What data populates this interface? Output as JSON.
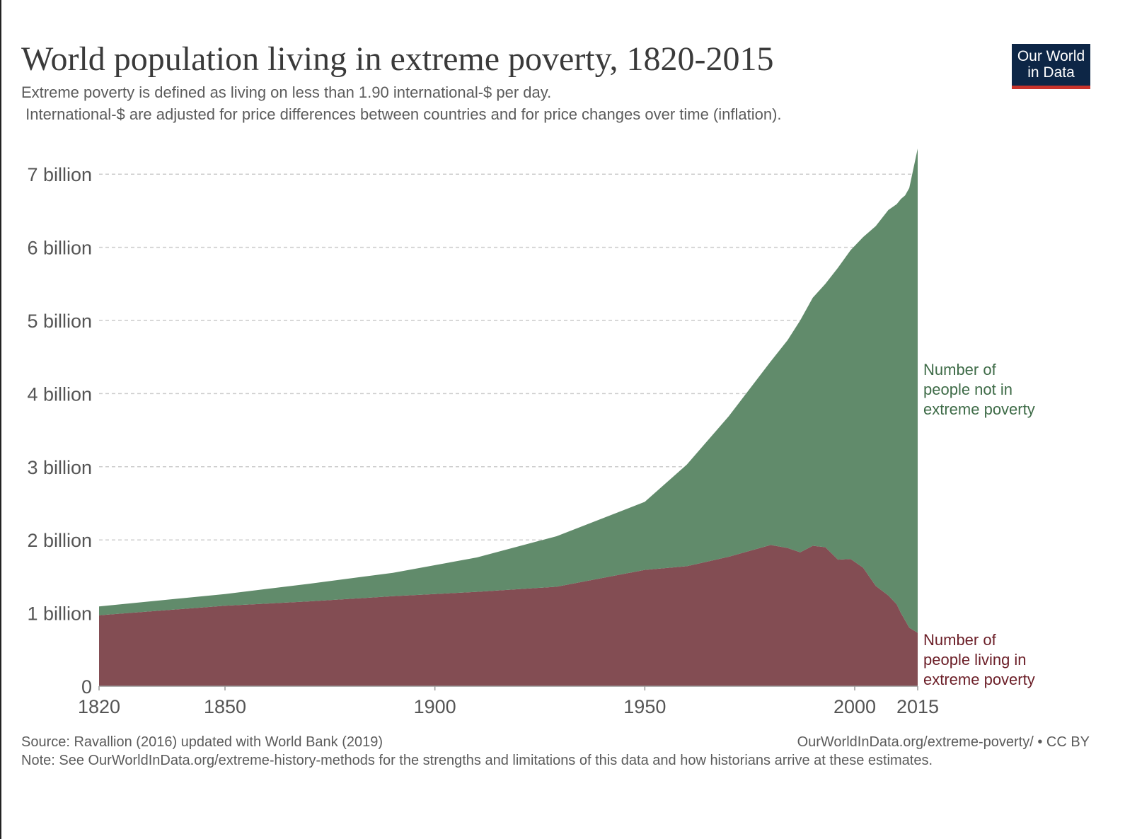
{
  "header": {
    "title": "World population living in extreme poverty, 1820-2015",
    "subtitle_line1": "Extreme poverty is defined as living on less than 1.90 international-$ per day.",
    "subtitle_line2": " International-$ are adjusted for price differences between countries and for price changes over time (inflation).",
    "logo_line1": "Our World",
    "logo_line2": "in Data"
  },
  "footer": {
    "source": "Source: Ravallion (2016) updated with World Bank (2019)",
    "url": "OurWorldInData.org/extreme-poverty/ • CC BY",
    "note": "Note: See OurWorldInData.org/extreme-history-methods for the strengths and limitations of this data and how historians arrive at these estimates."
  },
  "colors": {
    "poverty": "#834d53",
    "not_poverty": "#618b6b",
    "poverty_label": "#6b1e27",
    "not_poverty_label": "#3e6b47",
    "grid": "#cccccc",
    "logo_bg": "#0d2646",
    "logo_accent": "#c8332b"
  },
  "chart_data": {
    "type": "area",
    "stacked": true,
    "title": "World population living in extreme poverty, 1820-2015",
    "xlim": [
      1820,
      2015
    ],
    "ylim": [
      0,
      7.35
    ],
    "y_unit": "billion",
    "x_ticks": [
      1820,
      1850,
      1900,
      1950,
      2000,
      2015
    ],
    "y_ticks": [
      {
        "value": 0,
        "label": "0"
      },
      {
        "value": 1,
        "label": "1 billion"
      },
      {
        "value": 2,
        "label": "2 billion"
      },
      {
        "value": 3,
        "label": "3 billion"
      },
      {
        "value": 4,
        "label": "4 billion"
      },
      {
        "value": 5,
        "label": "5 billion"
      },
      {
        "value": 6,
        "label": "6 billion"
      },
      {
        "value": 7,
        "label": "7 billion"
      }
    ],
    "grid": "horizontal dashed",
    "legend": "inline right",
    "series": [
      {
        "name": "Number of people living in extreme poverty",
        "label_lines": [
          "Number of",
          "people living in",
          "extreme poverty"
        ],
        "points": [
          [
            1820,
            0.97
          ],
          [
            1850,
            1.1
          ],
          [
            1870,
            1.16
          ],
          [
            1890,
            1.23
          ],
          [
            1910,
            1.29
          ],
          [
            1929,
            1.36
          ],
          [
            1950,
            1.59
          ],
          [
            1960,
            1.64
          ],
          [
            1970,
            1.77
          ],
          [
            1980,
            1.93
          ],
          [
            1984,
            1.89
          ],
          [
            1987,
            1.83
          ],
          [
            1990,
            1.92
          ],
          [
            1993,
            1.9
          ],
          [
            1996,
            1.73
          ],
          [
            1999,
            1.74
          ],
          [
            2002,
            1.62
          ],
          [
            2005,
            1.37
          ],
          [
            2008,
            1.24
          ],
          [
            2010,
            1.12
          ],
          [
            2011,
            1.0
          ],
          [
            2012,
            0.9
          ],
          [
            2013,
            0.8
          ],
          [
            2015,
            0.73
          ]
        ]
      },
      {
        "name": "Number of people not in extreme poverty",
        "label_lines": [
          "Number of",
          "people not in",
          "extreme poverty"
        ],
        "points": [
          [
            1820,
            0.12
          ],
          [
            1850,
            0.16
          ],
          [
            1870,
            0.24
          ],
          [
            1890,
            0.32
          ],
          [
            1910,
            0.47
          ],
          [
            1929,
            0.69
          ],
          [
            1950,
            0.93
          ],
          [
            1960,
            1.39
          ],
          [
            1970,
            1.92
          ],
          [
            1980,
            2.51
          ],
          [
            1984,
            2.84
          ],
          [
            1987,
            3.17
          ],
          [
            1990,
            3.39
          ],
          [
            1993,
            3.6
          ],
          [
            1996,
            3.99
          ],
          [
            1999,
            4.22
          ],
          [
            2002,
            4.52
          ],
          [
            2005,
            4.92
          ],
          [
            2008,
            5.27
          ],
          [
            2010,
            5.47
          ],
          [
            2011,
            5.66
          ],
          [
            2012,
            5.81
          ],
          [
            2013,
            6.01
          ],
          [
            2015,
            6.62
          ]
        ]
      }
    ]
  }
}
